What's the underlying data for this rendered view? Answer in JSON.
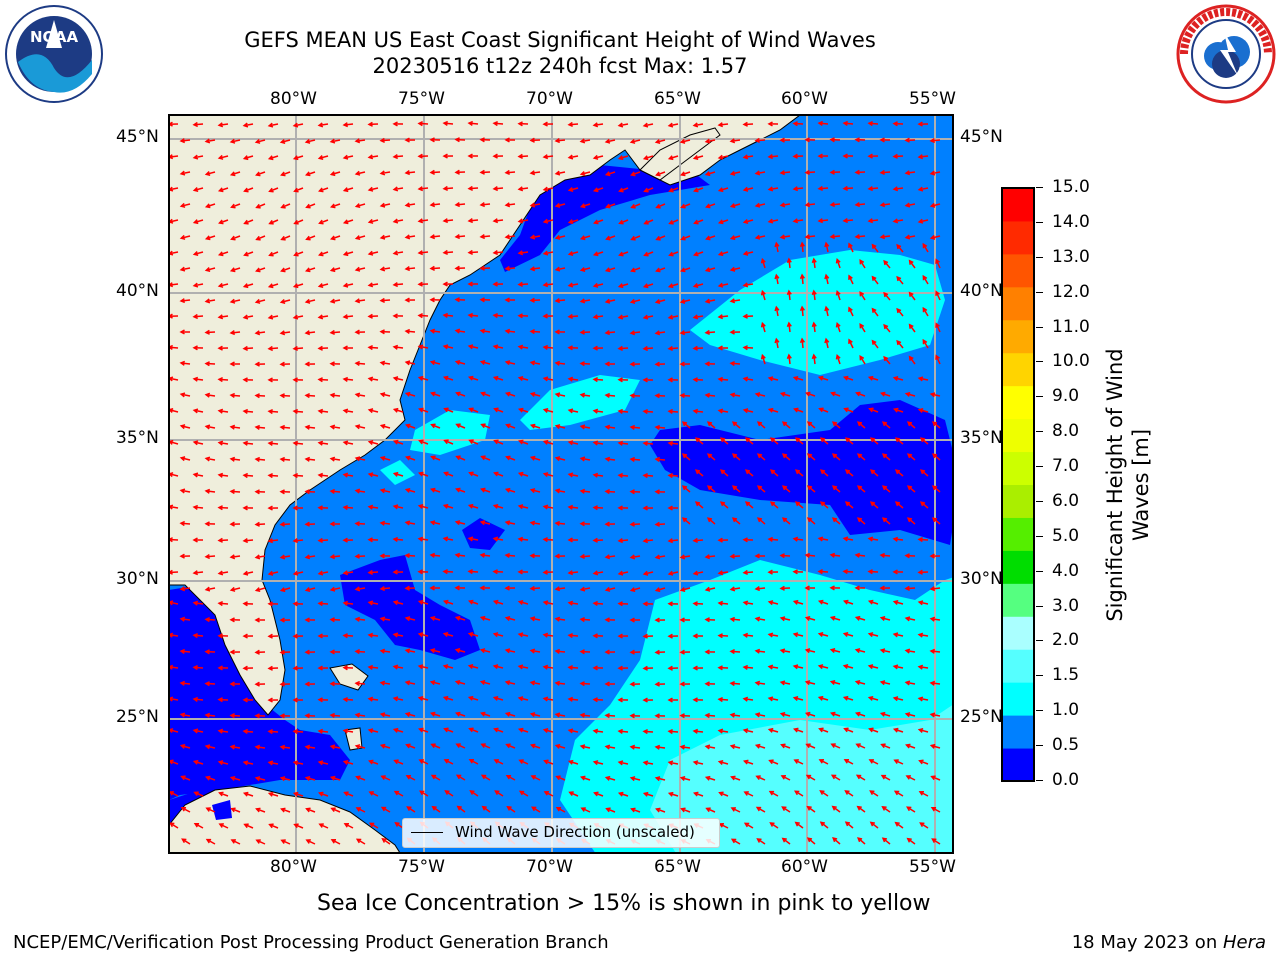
{
  "header": {
    "title_line1": "GEFS MEAN US East Coast Significant Height of Wind Waves",
    "title_line2": "20230516 t12z 240h fcst   Max: 1.57"
  },
  "logos": {
    "noaa_text": "NOAA",
    "noaa_ring": "NATIONAL OCEANIC AND ATMOSPHERIC ADMINISTRATION · U.S. DEPARTMENT OF COMMERCE",
    "nws_ring": "NATIONAL WEATHER SERVICE"
  },
  "map": {
    "lon_labels": [
      "80°W",
      "75°W",
      "70°W",
      "65°W",
      "60°W",
      "55°W"
    ],
    "lat_labels": [
      "45°N",
      "40°N",
      "35°N",
      "30°N",
      "25°N"
    ],
    "legend_label": "Wind Wave Direction (unscaled)",
    "colors": {
      "land": "#efeedc",
      "level_0": "#0000ff",
      "level_05": "#0080ff",
      "level_10": "#00ffff",
      "level_15": "#55ffff",
      "arrow": "#ff0000",
      "grid": "#b0b0b0"
    }
  },
  "colorbar": {
    "title_line1": "Significant Height of Wind",
    "title_line2": "Waves [m]",
    "ticks": [
      "0.0",
      "0.5",
      "1.0",
      "1.5",
      "2.0",
      "3.0",
      "4.0",
      "5.0",
      "6.0",
      "7.0",
      "8.0",
      "9.0",
      "10.0",
      "11.0",
      "12.0",
      "13.0",
      "14.0",
      "15.0"
    ],
    "colors": [
      "#0000ff",
      "#0080ff",
      "#00ffff",
      "#55ffff",
      "#aaffff",
      "#55ff80",
      "#00dd00",
      "#55ee00",
      "#aaee00",
      "#ccff00",
      "#eeff00",
      "#ffff00",
      "#ffd400",
      "#ffaa00",
      "#ff8000",
      "#ff5500",
      "#ff2a00",
      "#ff0000"
    ]
  },
  "caption": "Sea Ice Concentration > 15% is shown in pink to yellow",
  "footer": {
    "left": "NCEP/EMC/Verification Post Processing Product Generation Branch",
    "date": "18 May 2023 on ",
    "machine": "Hera"
  }
}
